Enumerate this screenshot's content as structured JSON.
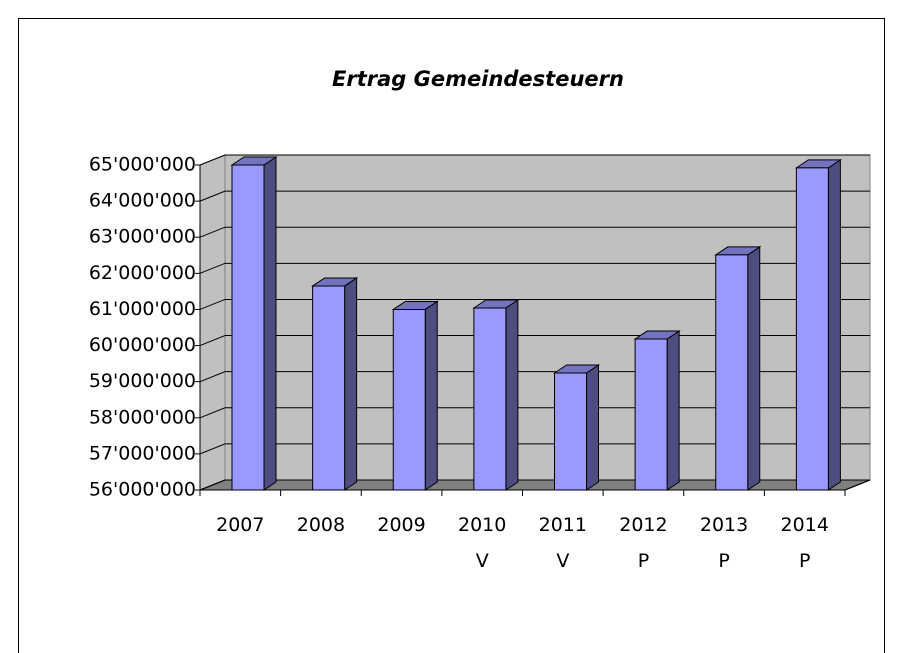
{
  "chart_data": {
    "type": "bar3d",
    "title": "Ertrag Gemeindesteuern",
    "categories": [
      "2007",
      "2008",
      "2009",
      "2010 V",
      "2011 V",
      "2012 P",
      "2013 P",
      "2014 P"
    ],
    "values": [
      65000000,
      61650000,
      61000000,
      61040000,
      59240000,
      60180000,
      62510000,
      64920000
    ],
    "color": "#9999ff",
    "ylim": [
      56000000,
      65000000
    ],
    "yticks": [
      {
        "value": 56000000,
        "label": "56'000'000"
      },
      {
        "value": 57000000,
        "label": "57'000'000"
      },
      {
        "value": 58000000,
        "label": "58'000'000"
      },
      {
        "value": 59000000,
        "label": "59'000'000"
      },
      {
        "value": 60000000,
        "label": "60'000'000"
      },
      {
        "value": 61000000,
        "label": "61'000'000"
      },
      {
        "value": 62000000,
        "label": "62'000'000"
      },
      {
        "value": 63000000,
        "label": "63'000'000"
      },
      {
        "value": 64000000,
        "label": "64'000'000"
      },
      {
        "value": 65000000,
        "label": "65'000'000"
      }
    ],
    "grid": true
  }
}
